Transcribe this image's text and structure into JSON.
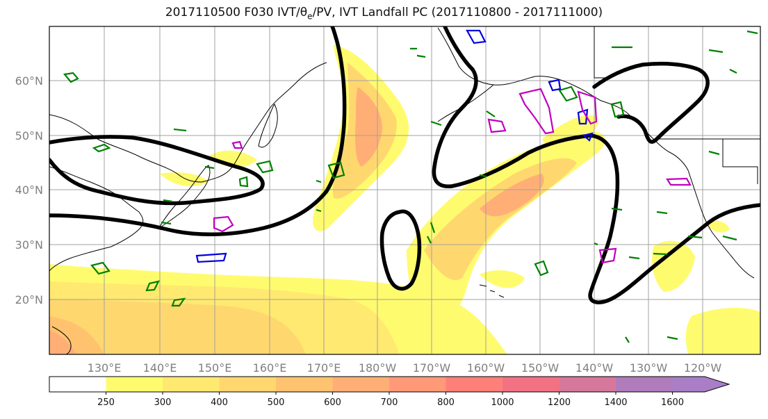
{
  "title": {
    "prefix": "2017110500 F030 IVT/θ",
    "sub": "e",
    "suffix": "/PV, IVT Landfall PC (2017110800 - 2017111000)"
  },
  "map": {
    "lon_labels": [
      "130°E",
      "140°E",
      "150°E",
      "160°E",
      "170°E",
      "180°W",
      "170°W",
      "160°W",
      "150°W",
      "140°W",
      "130°W",
      "120°W"
    ],
    "lat_labels": [
      "20°N",
      "30°N",
      "40°N",
      "50°N",
      "60°N"
    ],
    "colors": {
      "contour_theta": "#000000",
      "pv_green": "#008000",
      "pv_blue": "#0000e0",
      "pv_magenta": "#c000c0",
      "grid": "#a0a0a0",
      "coast": "#000000"
    }
  },
  "colorbar": {
    "levels": [
      "250",
      "300",
      "400",
      "500",
      "600",
      "700",
      "800",
      "1000",
      "1200",
      "1400",
      "1600"
    ],
    "colors": [
      "#ffffff",
      "#fffb6e",
      "#ffe970",
      "#ffd76f",
      "#ffc370",
      "#ffaf76",
      "#ff9978",
      "#ff8078",
      "#f27284",
      "#d6789c",
      "#b07cbc",
      "#a97ec7"
    ]
  }
}
